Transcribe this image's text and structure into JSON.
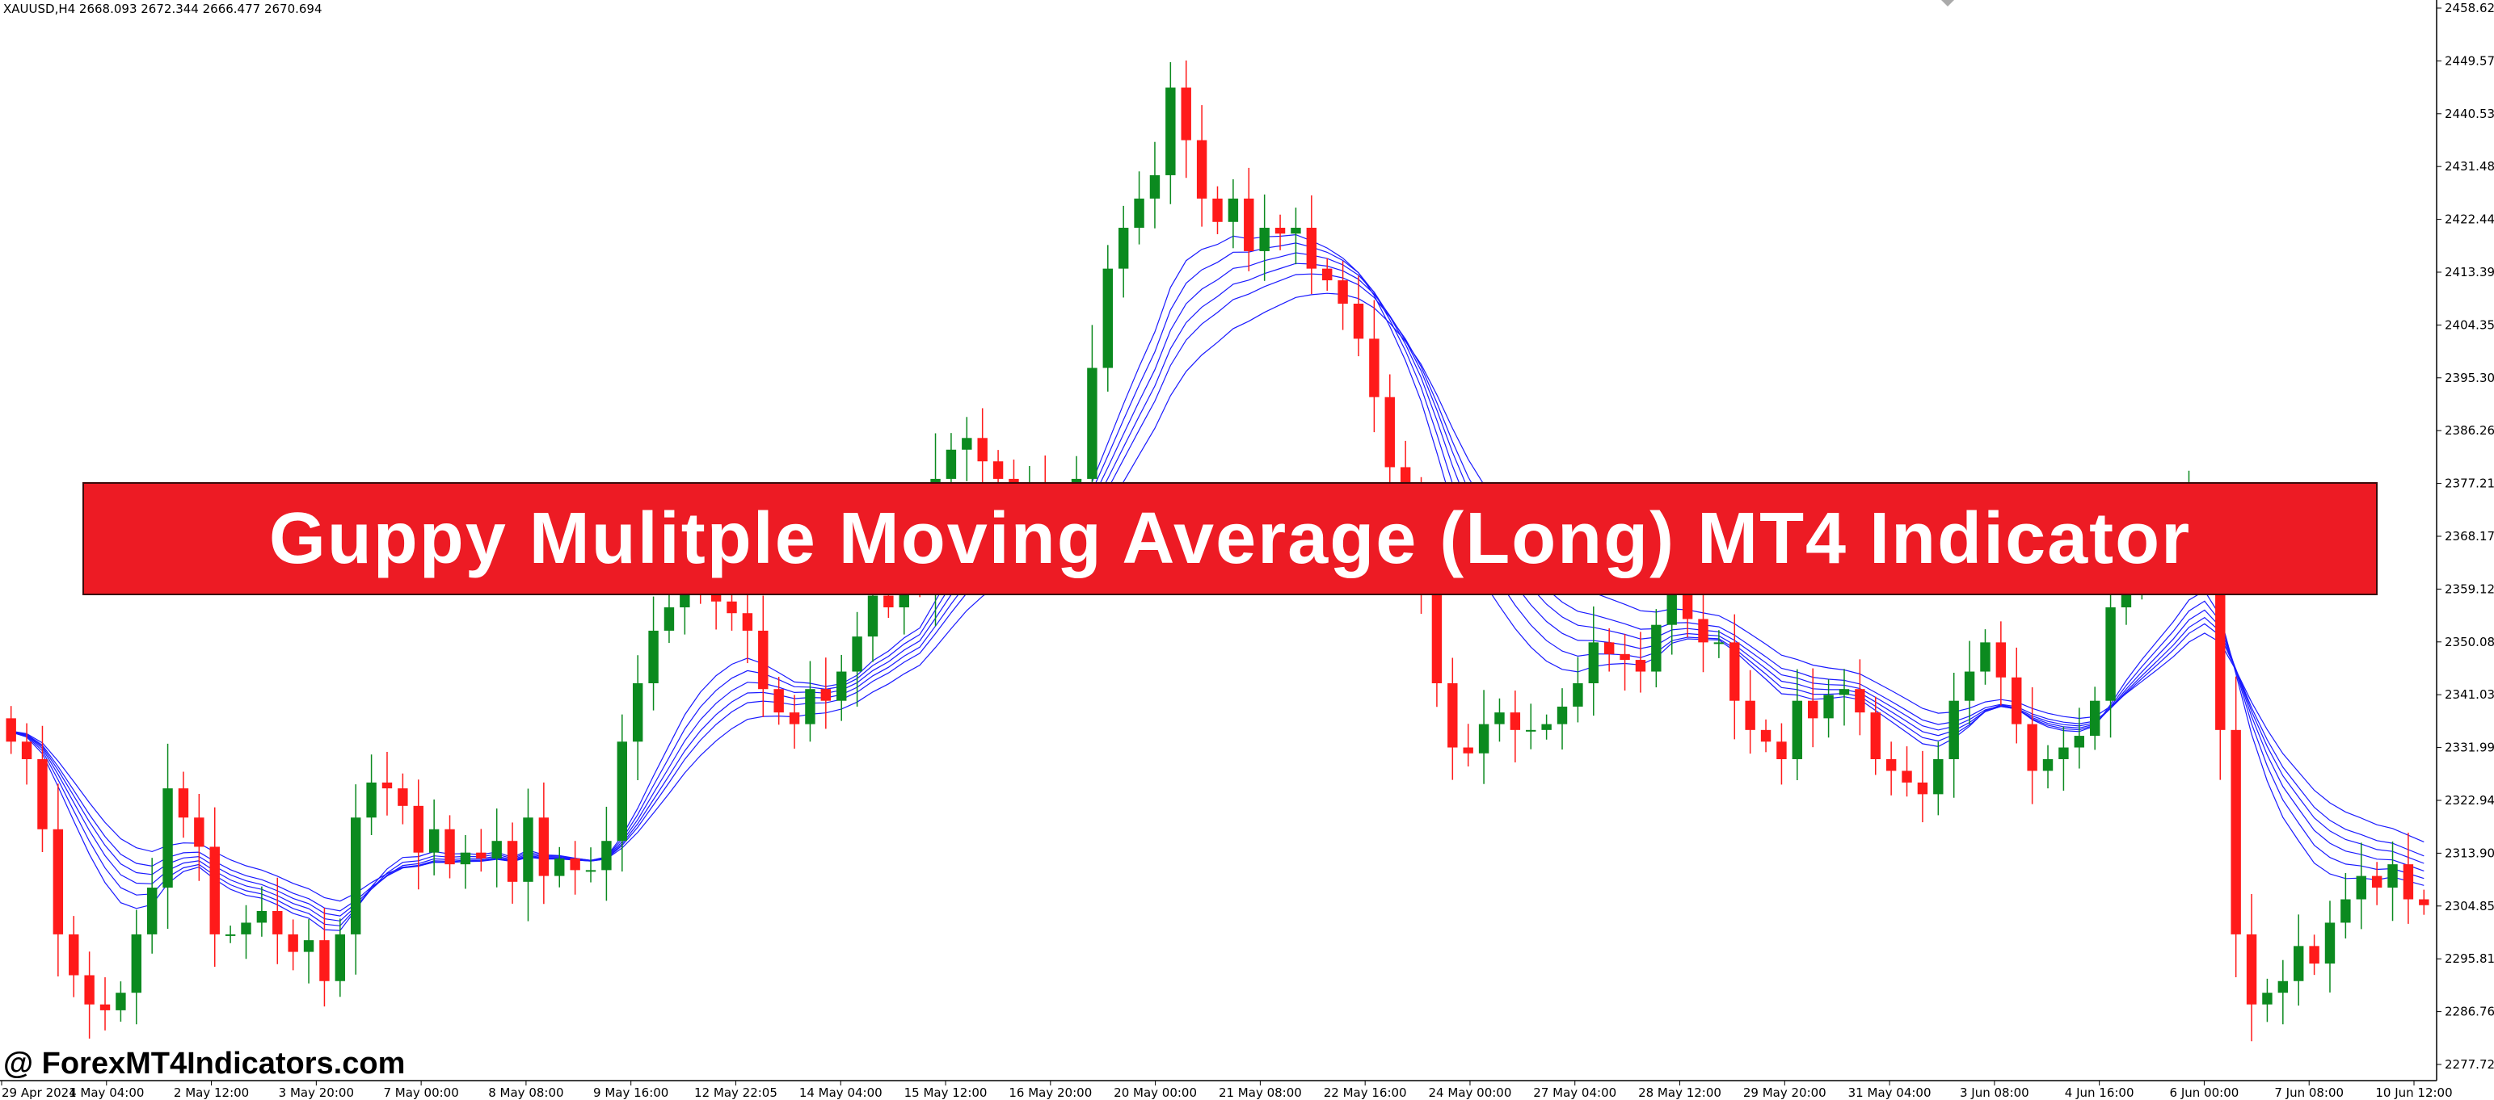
{
  "header": {
    "info": "XAUUSD,H4  2668.093 2672.344 2666.477 2670.694"
  },
  "banner": {
    "title": "Guppy Mulitple Moving Average (Long) MT4 Indicator"
  },
  "watermark": {
    "text": "@ ForexMT4Indicators.com"
  },
  "colors": {
    "bull": "#0b8a1f",
    "bear": "#ff1a1a",
    "ma": "#1a1aff",
    "banner": "#ed1b24"
  },
  "chart_data": {
    "type": "candlestick",
    "symbol": "XAUUSD",
    "timeframe": "H4",
    "ylim": [
      2277.72,
      2458.62
    ],
    "y_ticks": [
      "2458.620",
      "2449.575",
      "2440.530",
      "2431.485",
      "2422.440",
      "2413.395",
      "2404.350",
      "2395.305",
      "2386.260",
      "2377.215",
      "2368.170",
      "2359.125",
      "2350.080",
      "2341.035",
      "2331.990",
      "2322.945",
      "2313.900",
      "2304.855",
      "2295.810",
      "2286.765",
      "2277.720"
    ],
    "x_ticks": [
      "29 Apr 2024",
      "1 May 04:00",
      "2 May 12:00",
      "3 May 20:00",
      "7 May 00:00",
      "8 May 08:00",
      "9 May 16:00",
      "12 May 22:05",
      "14 May 04:00",
      "15 May 12:00",
      "16 May 20:00",
      "20 May 00:00",
      "21 May 08:00",
      "22 May 16:00",
      "24 May 00:00",
      "27 May 04:00",
      "28 May 12:00",
      "29 May 20:00",
      "31 May 04:00",
      "3 Jun 08:00",
      "4 Jun 16:00",
      "6 Jun 00:00",
      "7 Jun 08:00",
      "10 Jun 12:00"
    ],
    "ohlc_closes": [
      2333,
      2330,
      2318,
      2300,
      2293,
      2288,
      2287,
      2290,
      2300,
      2308,
      2325,
      2320,
      2315,
      2300,
      2300,
      2302,
      2304,
      2300,
      2297,
      2299,
      2292,
      2300,
      2320,
      2326,
      2325,
      2322,
      2314,
      2318,
      2312,
      2314,
      2313,
      2316,
      2309,
      2320,
      2310,
      2313,
      2311,
      2311,
      2316,
      2333,
      2343,
      2352,
      2356,
      2361,
      2359,
      2357,
      2355,
      2352,
      2342,
      2338,
      2336,
      2342,
      2340,
      2345,
      2351,
      2358,
      2356,
      2361,
      2360,
      2378,
      2383,
      2385,
      2381,
      2378,
      2374,
      2376,
      2370,
      2374,
      2378,
      2397,
      2414,
      2421,
      2426,
      2430,
      2445,
      2436,
      2426,
      2422,
      2426,
      2417,
      2421,
      2420,
      2421,
      2414,
      2412,
      2408,
      2402,
      2392,
      2380,
      2372,
      2360,
      2343,
      2332,
      2331,
      2336,
      2338,
      2335,
      2335,
      2336,
      2339,
      2343,
      2350,
      2348,
      2347,
      2345,
      2353,
      2361,
      2354,
      2350,
      2350,
      2340,
      2335,
      2333,
      2330,
      2340,
      2337,
      2341,
      2342,
      2338,
      2330,
      2328,
      2326,
      2324,
      2330,
      2340,
      2345,
      2350,
      2344,
      2336,
      2328,
      2330,
      2332,
      2334,
      2340,
      2356,
      2362,
      2363,
      2365,
      2368,
      2374,
      2366,
      2335,
      2300,
      2288,
      2290,
      2292,
      2298,
      2295,
      2302,
      2306,
      2310,
      2308,
      2312,
      2306,
      2305
    ],
    "series": [
      {
        "name": "",
        "type": "candles"
      },
      {
        "name": "",
        "type": "ema",
        "count": 6
      }
    ]
  }
}
